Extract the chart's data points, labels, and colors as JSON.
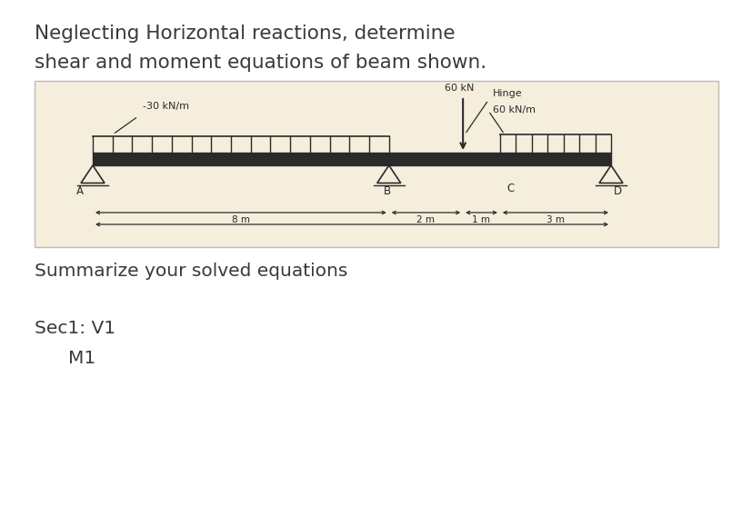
{
  "title_line1": "Neglecting Horizontal reactions, determine",
  "title_line2": "shear and moment equations of beam shown.",
  "title_fontsize": 15.5,
  "bg_color": "#ffffff",
  "diagram_bg": "#f5eedc",
  "text_color": "#3a3a3a",
  "beam_color": "#2a2a2a",
  "summary_title": "Summarize your solved equations",
  "sec1_label": "Sec1: V1",
  "m1_label": "M1",
  "load_label_left": "-30 kN/m",
  "load_label_60kn": "60 kN",
  "load_label_right": "60 kN/m",
  "hinge_label": "Hinge",
  "label_A": "A",
  "label_B": "B",
  "label_C": "C",
  "label_D": "D",
  "dist_AB": "8 m",
  "dist_BC": "2 m",
  "dist_C": "1 m",
  "dist_CD": "3 m"
}
